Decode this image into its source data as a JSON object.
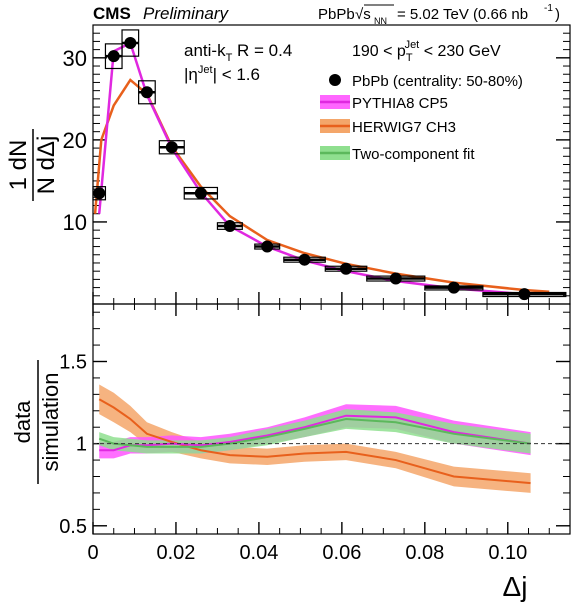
{
  "header": {
    "experiment": "CMS",
    "status": "Preliminary",
    "system": "PbPb",
    "sqrt_s_prefix": "√s",
    "sqrt_s_sub": "NN",
    "energy": "= 5.02 TeV (0.66 nb",
    "lumi_exp": "-1",
    "lumi_close": ")"
  },
  "annotations": {
    "algo_pre": "anti-k",
    "algo_sub": "T",
    "algo_post": " R = 0.4",
    "eta_pre": "|η",
    "eta_sup": "Jet",
    "eta_post": "| < 1.6",
    "pt_pre": "190 < p",
    "pt_sub": "T",
    "pt_sup": "Jet",
    "pt_post": " < 230 GeV"
  },
  "legend": {
    "data": "PbPb (centrality: 50-80%)",
    "pythia": "PYTHIA8 CP5",
    "herwig": "HERWIG7 CH3",
    "fit": "Two-component fit"
  },
  "colors": {
    "pythia": "#e028e0",
    "pythia_band": "#ff55ff",
    "herwig": "#e8601c",
    "herwig_band": "#f4a66a",
    "fit": "#5cb85c",
    "fit_band": "#8fdf8f",
    "data": "#000000"
  },
  "chart_data": [
    {
      "type": "scatter",
      "panel": "top",
      "xlim": [
        0,
        0.115
      ],
      "ylim": [
        0,
        34
      ],
      "yticks": [
        10,
        20,
        30
      ],
      "ylabel": {
        "num": "1  dN",
        "den": "N dΔj"
      },
      "series": [
        {
          "name": "PbPb (centrality: 50-80%)",
          "x": [
            0.0015,
            0.005,
            0.009,
            0.013,
            0.019,
            0.026,
            0.033,
            0.042,
            0.051,
            0.061,
            0.073,
            0.087,
            0.104
          ],
          "xw": [
            0.0015,
            0.002,
            0.002,
            0.002,
            0.003,
            0.004,
            0.003,
            0.003,
            0.005,
            0.005,
            0.007,
            0.007,
            0.01
          ],
          "y": [
            13.5,
            30.2,
            31.8,
            25.8,
            19.1,
            13.5,
            9.5,
            7.0,
            5.4,
            4.3,
            3.1,
            2.0,
            1.2
          ],
          "syst": [
            0.8,
            1.5,
            1.6,
            1.4,
            0.8,
            0.7,
            0.4,
            0.3,
            0.3,
            0.3,
            0.3,
            0.2,
            0.2
          ]
        },
        {
          "name": "PYTHIA8 CP5",
          "x": [
            0.0015,
            0.005,
            0.009,
            0.013,
            0.019,
            0.026,
            0.033,
            0.042,
            0.051,
            0.061,
            0.073,
            0.087,
            0.104
          ],
          "y": [
            11.0,
            30.8,
            31.8,
            25.5,
            19.0,
            13.6,
            9.5,
            7.0,
            5.3,
            4.0,
            2.8,
            1.9,
            1.2
          ]
        },
        {
          "name": "HERWIG7 CH3",
          "x": [
            0.0005,
            0.002,
            0.005,
            0.009,
            0.013,
            0.019,
            0.026,
            0.033,
            0.042,
            0.051,
            0.061,
            0.073,
            0.087,
            0.104,
            0.11
          ],
          "y": [
            11.0,
            20.0,
            24.2,
            27.3,
            25.6,
            19.2,
            14.3,
            10.7,
            7.8,
            6.2,
            4.9,
            3.7,
            2.6,
            1.7,
            1.5
          ]
        }
      ]
    },
    {
      "type": "line",
      "panel": "bottom",
      "xlim": [
        0,
        0.115
      ],
      "ylim": [
        0.45,
        1.85
      ],
      "xticks": [
        0,
        0.02,
        0.04,
        0.06,
        0.08,
        0.1
      ],
      "yticks": [
        0.5,
        1,
        1.5
      ],
      "xlabel": "Δj",
      "ylabel": {
        "num": "data",
        "den": "simulation"
      },
      "reference": 1.0,
      "series": [
        {
          "name": "PYTHIA8 CP5",
          "x": [
            0.0015,
            0.005,
            0.009,
            0.013,
            0.019,
            0.026,
            0.033,
            0.042,
            0.051,
            0.061,
            0.073,
            0.087,
            0.104
          ],
          "y": [
            0.96,
            0.96,
            0.99,
            0.99,
            1.0,
            0.99,
            1.01,
            1.05,
            1.1,
            1.17,
            1.16,
            1.07,
            1.0
          ],
          "err": [
            0.05,
            0.05,
            0.05,
            0.05,
            0.05,
            0.05,
            0.05,
            0.05,
            0.06,
            0.07,
            0.07,
            0.07,
            0.07
          ]
        },
        {
          "name": "HERWIG7 CH3",
          "x": [
            0.0015,
            0.005,
            0.009,
            0.013,
            0.019,
            0.026,
            0.033,
            0.042,
            0.051,
            0.061,
            0.073,
            0.087,
            0.104
          ],
          "y": [
            1.27,
            1.22,
            1.15,
            1.06,
            1.01,
            0.96,
            0.93,
            0.92,
            0.94,
            0.95,
            0.9,
            0.8,
            0.76
          ],
          "err": [
            0.09,
            0.09,
            0.08,
            0.07,
            0.06,
            0.05,
            0.05,
            0.05,
            0.05,
            0.05,
            0.05,
            0.06,
            0.06
          ]
        },
        {
          "name": "Two-component fit",
          "x": [
            0.0015,
            0.005,
            0.009,
            0.013,
            0.019,
            0.026,
            0.033,
            0.042,
            0.051,
            0.061,
            0.073,
            0.087,
            0.104
          ],
          "y": [
            1.03,
            1.0,
            0.99,
            0.98,
            0.98,
            0.98,
            1.0,
            1.04,
            1.09,
            1.15,
            1.13,
            1.06,
            1.0
          ],
          "err": [
            0.04,
            0.04,
            0.04,
            0.04,
            0.04,
            0.04,
            0.04,
            0.05,
            0.05,
            0.06,
            0.06,
            0.06,
            0.06
          ]
        }
      ]
    }
  ]
}
